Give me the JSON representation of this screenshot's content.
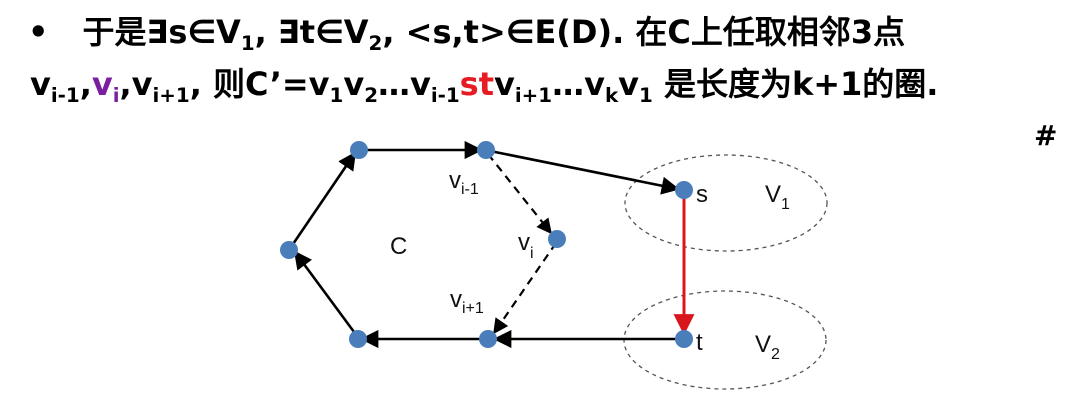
{
  "text": {
    "bullet": "•",
    "l1_a": "于是∃s∈V",
    "l1_sub1": "1",
    "l1_b": ", ∃t∈V",
    "l1_sub2": "2",
    "l1_c": ", <s,t>∈E(D). 在C上任取相邻3点",
    "l2_v1": "v",
    "l2_v1_sub": "i-1",
    "l2_comma1": ",",
    "l2_v2": "v",
    "l2_v2_sub": "i",
    "l2_comma2": ",",
    "l2_v3": "v",
    "l2_v3_sub": "i+1",
    "l2_b": ", 则C’=v",
    "l2_s1": "1",
    "l2_c": "v",
    "l2_s2": "2",
    "l2_d": "…v",
    "l2_s3": "i-1",
    "l2_st": "st",
    "l2_e": "v",
    "l2_s4": "i+1",
    "l2_f": "…v",
    "l2_s5": "k",
    "l2_g": "v",
    "l2_s6": "1",
    "l2_h": " 是长度为k+1的圈.",
    "hash": "#"
  },
  "diagram": {
    "label_C": "C",
    "label_vi1_base": "v",
    "label_vi1_sub": "i-1",
    "label_vi_base": "v",
    "label_vi_sub": "i",
    "label_vip1_base": "v",
    "label_vip1_sub": "i+1",
    "label_s": "s",
    "label_t": "t",
    "label_V1_base": "V",
    "label_V1_sub": "1",
    "label_V2_base": "V",
    "label_V2_sub": "2",
    "node_color": "#4a7ebb",
    "edge_color": "#000000",
    "highlight_edge_color": "#d9161c"
  }
}
